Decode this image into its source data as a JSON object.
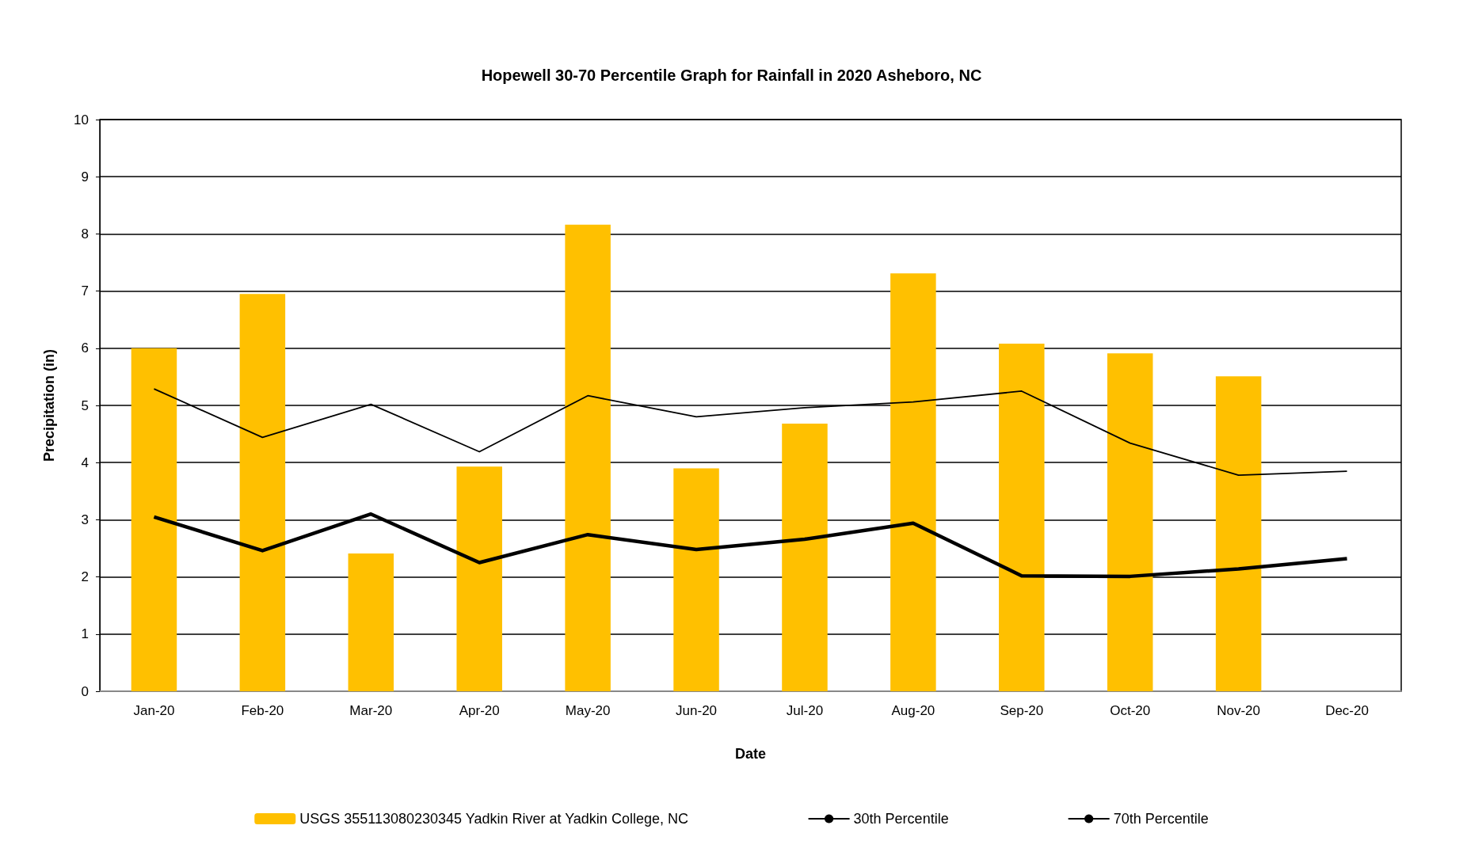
{
  "chart_data": {
    "type": "bar",
    "title": "Hopewell 30-70 Percentile Graph for Rainfall in 2020 Asheboro, NC",
    "xlabel": "Date",
    "ylabel": "Precipitation (in)",
    "categories": [
      "Jan-20",
      "Feb-20",
      "Mar-20",
      "Apr-20",
      "May-20",
      "Jun-20",
      "Jul-20",
      "Aug-20",
      "Sep-20",
      "Oct-20",
      "Nov-20",
      "Dec-20"
    ],
    "series": [
      {
        "name": "USGS 355113080230345 Yadkin River at Yadkin College, NC",
        "color": "#ffc000",
        "values": [
          6.0,
          6.95,
          2.41,
          3.93,
          8.16,
          3.9,
          4.68,
          7.31,
          6.08,
          5.91,
          5.51,
          null
        ]
      },
      {
        "name": "30th Percentile",
        "type": "line",
        "color": "#000000",
        "values": [
          3.05,
          2.46,
          3.1,
          2.25,
          2.74,
          2.48,
          2.66,
          2.94,
          2.02,
          2.01,
          2.14,
          2.32
        ]
      },
      {
        "name": "70th Percentile",
        "type": "line",
        "color": "#000000",
        "values": [
          5.29,
          4.44,
          5.02,
          4.19,
          5.17,
          4.8,
          4.96,
          5.06,
          5.25,
          4.34,
          3.78,
          3.85
        ]
      }
    ],
    "ylim": [
      0,
      10
    ],
    "yticks": [
      0,
      1,
      2,
      3,
      4,
      5,
      6,
      7,
      8,
      9,
      10
    ],
    "grid": "y",
    "legend": "bottom",
    "marker": "none"
  }
}
